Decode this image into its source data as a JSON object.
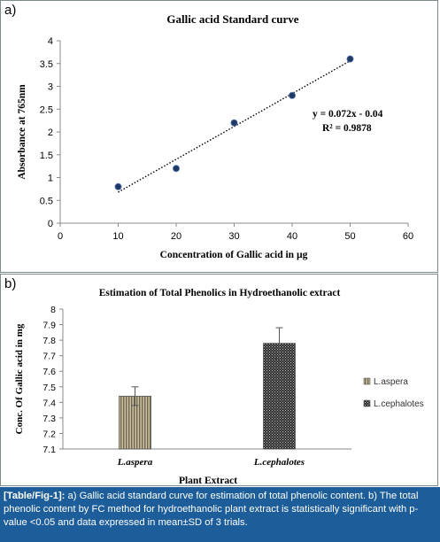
{
  "panel_a": {
    "label": "a)"
  },
  "panel_b": {
    "label": "b)"
  },
  "chart_data": [
    {
      "type": "scatter",
      "title": "Gallic acid Standard curve",
      "xlabel": "Concentration of Gallic acid in µg",
      "ylabel": "Absorbance at 765nm",
      "xlim": [
        0,
        60
      ],
      "ylim": [
        0,
        4
      ],
      "xticks": [
        "0",
        "10",
        "20",
        "30",
        "40",
        "50",
        "60"
      ],
      "yticks": [
        "0",
        "0.5",
        "1",
        "1.5",
        "2",
        "2.5",
        "3",
        "3.5",
        "4"
      ],
      "series": [
        {
          "x": [
            10,
            20,
            30,
            40,
            50
          ],
          "y": [
            0.8,
            1.2,
            2.2,
            2.8,
            3.6
          ]
        }
      ],
      "trendline": {
        "slope": 0.072,
        "intercept": -0.04,
        "style": "dotted"
      },
      "equation": "y = 0.072x - 0.04",
      "r_squared": "R² = 0.9878",
      "grid": false,
      "colors": {
        "marker": "#1f3864",
        "trendline": "#000000"
      }
    },
    {
      "type": "bar",
      "title": "Estimation of Total Phenolics in Hydroethanolic extract",
      "xlabel": "Plant Extract",
      "ylabel": "Conc. Of Gallic acid in mg",
      "ylim": [
        7.1,
        8
      ],
      "yticks": [
        "7.1",
        "7.2",
        "7.3",
        "7.4",
        "7.5",
        "7.6",
        "7.7",
        "7.8",
        "7.9",
        "8"
      ],
      "categories": [
        "L.aspera",
        "L.cephalotes"
      ],
      "values": [
        7.44,
        7.78
      ],
      "errors": [
        0.06,
        0.1
      ],
      "legend": [
        "L.aspera",
        "L.cephalotes"
      ],
      "legend_position": "right",
      "grid": false,
      "colors": {
        "bar1": "#9c9276",
        "bar2": "#5a5a5a"
      }
    }
  ],
  "caption": {
    "tag": "[Table/Fig-1]:",
    "text": " a) Gallic acid standard curve for estimation of total phenolic content. b) The total phenolic content by FC method for hydroethanolic plant extract is statistically significant with p-value <0.05 and data expressed in mean±SD of 3 trials."
  }
}
